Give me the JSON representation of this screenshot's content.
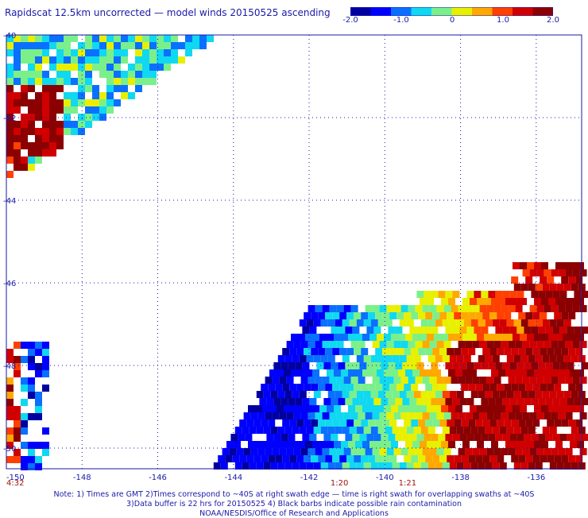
{
  "title": "Rapidscat 12.5km uncorrected — model winds 20150525 ascending",
  "colorbar": {
    "labels": [
      "-2.0",
      "-1.0",
      "0",
      "1.0",
      "2.0"
    ],
    "range": [
      -2.0,
      2.0
    ],
    "colors": [
      "#0000a0",
      "#0000ff",
      "#0a70ff",
      "#10d8f0",
      "#7bf08a",
      "#e8f000",
      "#ffa800",
      "#ff4000",
      "#d00000",
      "#8b0000"
    ]
  },
  "map": {
    "lon_labels": [
      "-150",
      "-148",
      "-146",
      "-144",
      "-142",
      "-140",
      "-138",
      "-136"
    ],
    "lat_labels": [
      "-40",
      "-42",
      "-44",
      "-46",
      "-48",
      "-50"
    ],
    "lon_range": [
      -150,
      -134.8
    ],
    "lat_range": [
      -50.5,
      -40
    ],
    "grid": "dotted"
  },
  "time_labels": [
    {
      "text": "4:32",
      "lon": -150
    },
    {
      "text": "1:20",
      "lon": -141.2
    },
    {
      "text": "1:21",
      "lon": -139.4
    }
  ],
  "notes": [
    "Note: 1) Times are GMT  2)Times correspond to ~40S at right swath edge — time is right swath for overlapping swaths at ~40S",
    "3)Data buffer is 22 hrs for 20150525  4) Black barbs indicate possible rain contamination",
    "NOAA/NESDIS/Office of Research and Applications"
  ]
}
